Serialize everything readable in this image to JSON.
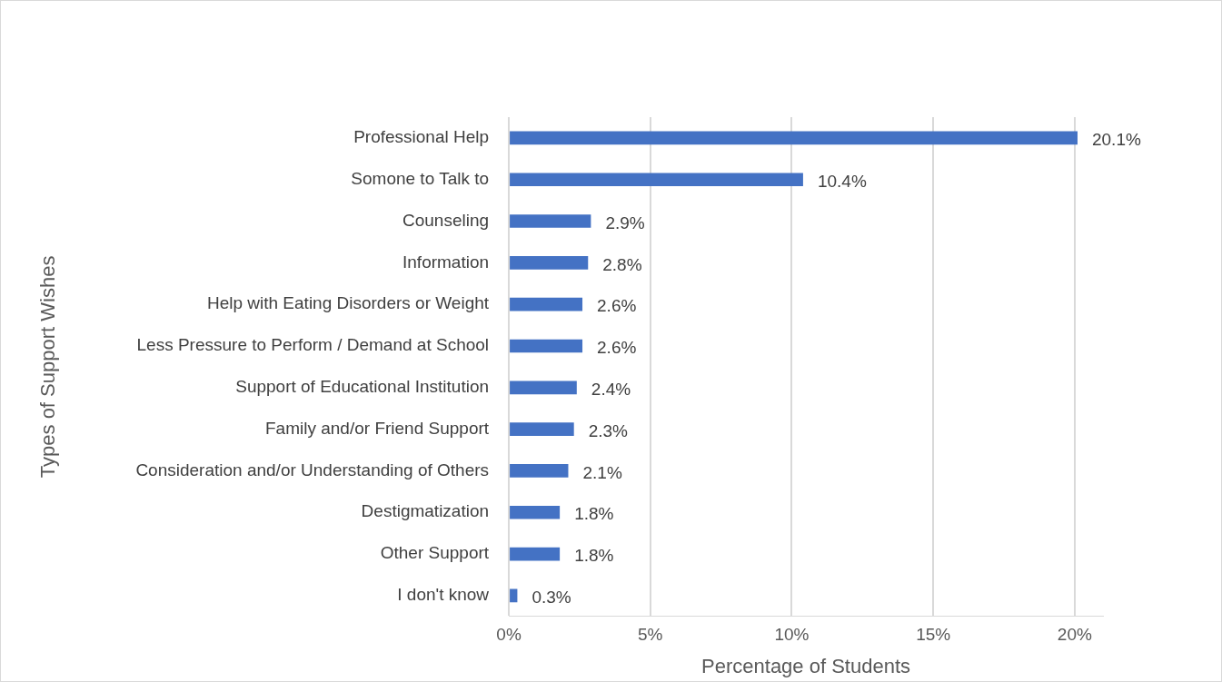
{
  "chart_data": {
    "type": "bar",
    "orientation": "horizontal",
    "xlabel": "Percentage of Students",
    "ylabel": "Types of Support Wishes",
    "categories": [
      "Professional Help",
      "Somone to Talk to",
      "Counseling",
      "Information",
      "Help with Eating Disorders or Weight",
      "Less Pressure to Perform / Demand at School",
      "Support of Educational Institution",
      "Family and/or Friend Support",
      "Consideration and/or Understanding of Others",
      "Destigmatization",
      "Other Support",
      "I don't know"
    ],
    "values": [
      20.1,
      10.4,
      2.9,
      2.8,
      2.6,
      2.6,
      2.4,
      2.3,
      2.1,
      1.8,
      1.8,
      0.3
    ],
    "value_labels": [
      "20.1%",
      "10.4%",
      "2.9%",
      "2.8%",
      "2.6%",
      "2.6%",
      "2.4%",
      "2.3%",
      "2.1%",
      "1.8%",
      "1.8%",
      "0.3%"
    ],
    "color": "#4472c4",
    "xlim": [
      0,
      21
    ],
    "xticks": [
      {
        "value": 0,
        "label": "0%"
      },
      {
        "value": 5,
        "label": "5%"
      },
      {
        "value": 10,
        "label": "10%"
      },
      {
        "value": 15,
        "label": "15%"
      },
      {
        "value": 20,
        "label": "20%"
      }
    ],
    "grid": "x",
    "legend": false
  }
}
